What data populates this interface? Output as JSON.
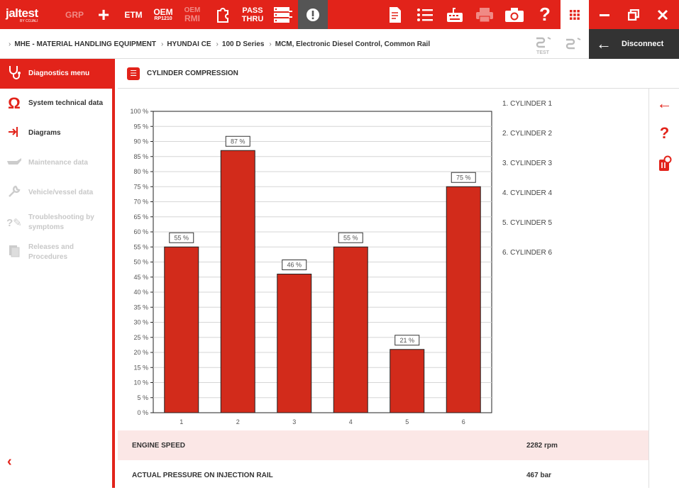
{
  "colors": {
    "accent": "#e2231a",
    "bar": "#d22b1b",
    "dark": "#333333"
  },
  "toolbar": {
    "logo_text": "jaltest",
    "logo_sub": "BY COJALI",
    "grp": "GRP",
    "etm": "ETM",
    "oem_rp1210_top": "OEM",
    "oem_rp1210_bottom": "RP1210",
    "oem_rmi_top": "OEM",
    "oem_rmi_bottom": "RMI",
    "passthru_top": "PASS",
    "passthru_bottom": "THRU",
    "icons": [
      "plus-icon",
      "puzzle-icon",
      "server-icon",
      "alert-icon",
      "document-icon",
      "list-icon",
      "keyboard-icon",
      "printer-icon",
      "camera-icon",
      "help-icon",
      "apps-grid-icon",
      "minimize-icon",
      "restore-icon",
      "close-icon"
    ]
  },
  "breadcrumb": [
    "MHE - MATERIAL HANDLING EQUIPMENT",
    "HYUNDAI CE",
    "100 D Series",
    "MCM, Electronic Diesel Control, Common Rail"
  ],
  "breadcrumb_icons": {
    "test": "TEST"
  },
  "disconnect_label": "Disconnect",
  "sidebar": {
    "items": [
      {
        "label": "Diagnostics menu",
        "icon": "stethoscope-icon",
        "state": "active"
      },
      {
        "label": "System technical data",
        "icon": "omega-icon",
        "state": "enabled"
      },
      {
        "label": "Diagrams",
        "icon": "diagram-icon",
        "state": "enabled"
      },
      {
        "label": "Maintenance data",
        "icon": "oil-can-icon",
        "state": "disabled"
      },
      {
        "label": "Vehicle/vessel data",
        "icon": "wrench-icon",
        "state": "disabled"
      },
      {
        "label": "Troubleshooting by symptoms",
        "icon": "troubleshoot-icon",
        "state": "disabled"
      },
      {
        "label": "Releases and Procedures",
        "icon": "procedures-icon",
        "state": "disabled"
      }
    ]
  },
  "panel": {
    "title": "CYLINDER COMPRESSION"
  },
  "chart_data": {
    "type": "bar",
    "categories": [
      "1",
      "2",
      "3",
      "4",
      "5",
      "6"
    ],
    "values": [
      55,
      87,
      46,
      55,
      21,
      75
    ],
    "value_labels": [
      "55 %",
      "87 %",
      "46 %",
      "55 %",
      "21 %",
      "75 %"
    ],
    "ylim": [
      0,
      100
    ],
    "ytick_step": 5,
    "ytick_suffix": " %",
    "grid": true,
    "legend_position": "right",
    "legend": [
      "1. CYLINDER 1",
      "2. CYLINDER 2",
      "3. CYLINDER 3",
      "4. CYLINDER 4",
      "5. CYLINDER 5",
      "6. CYLINDER 6"
    ]
  },
  "parameters": [
    {
      "name": "ENGINE SPEED",
      "value": "2282 rpm"
    },
    {
      "name": "ACTUAL PRESSURE ON INJECTION RAIL",
      "value": "467 bar"
    }
  ]
}
